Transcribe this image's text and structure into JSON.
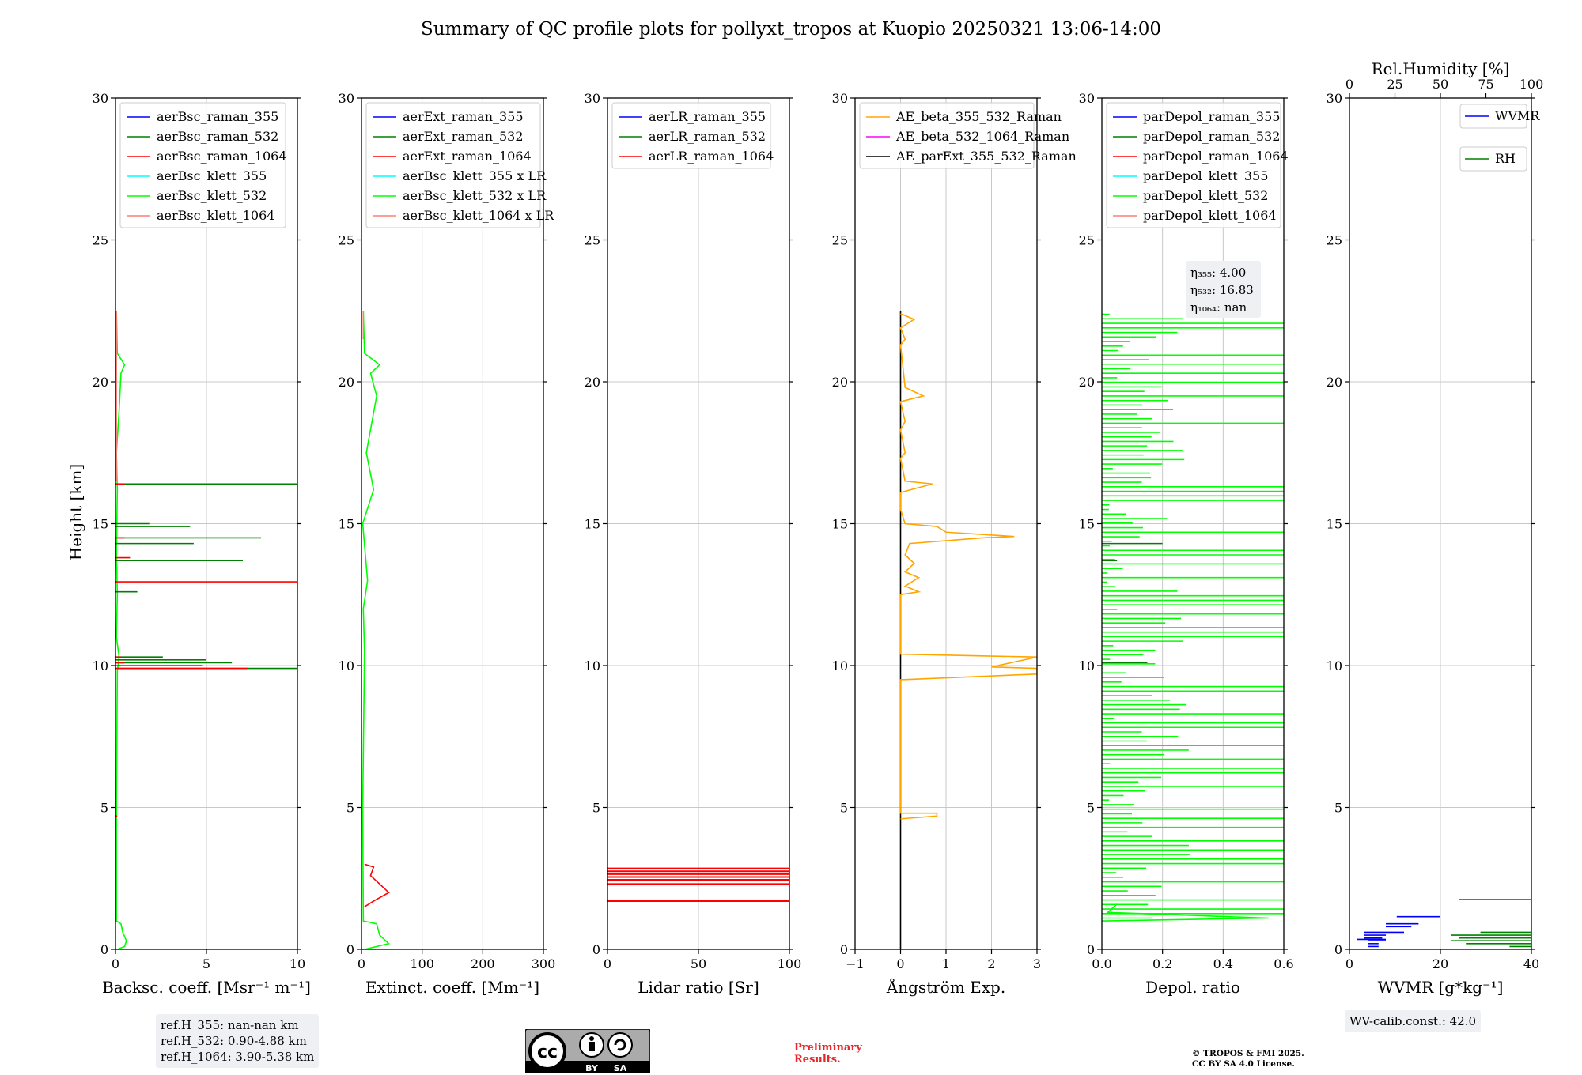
{
  "title": "Summary of QC profile plots for pollyxt_tropos at Kuopio 20250321 13:06-14:00",
  "ylabel": "Height [km]",
  "chart_data": [
    {
      "type": "line",
      "name": "backscatter",
      "xlabel": "Backsc. coeff. [Msr⁻¹ m⁻¹]",
      "xlim": [
        0,
        10
      ],
      "ylim": [
        0,
        30
      ],
      "xticks": [
        "0",
        "5",
        "10"
      ],
      "yticks": [
        "0",
        "5",
        "10",
        "15",
        "20",
        "25",
        "30"
      ],
      "legend": [
        "aerBsc_raman_355",
        "aerBsc_raman_532",
        "aerBsc_raman_1064",
        "aerBsc_klett_355",
        "aerBsc_klett_532",
        "aerBsc_klett_1064"
      ],
      "legend_colors": [
        "#0000ff",
        "#008000",
        "#ff0000",
        "#00ffff",
        "#00ff00",
        "#fa8072"
      ],
      "series": [
        {
          "color": "#00ff00",
          "points": [
            [
              0.1,
              0
            ],
            [
              0.5,
              0.1
            ],
            [
              0.6,
              0.3
            ],
            [
              0.4,
              0.6
            ],
            [
              0.3,
              0.9
            ],
            [
              0.05,
              1.0
            ],
            [
              0.05,
              5
            ],
            [
              0.1,
              9.8
            ],
            [
              0.2,
              10.3
            ],
            [
              0.05,
              11
            ],
            [
              0.1,
              12.5
            ],
            [
              0.05,
              14
            ],
            [
              0.1,
              16.2
            ],
            [
              0.05,
              17.5
            ],
            [
              0.2,
              19
            ],
            [
              0.3,
              20.3
            ],
            [
              0.5,
              20.6
            ],
            [
              0.1,
              21
            ],
            [
              0.05,
              22.5
            ]
          ]
        },
        {
          "color": "#008000",
          "segments": [
            [
              9.9,
              10
            ],
            [
              10.0,
              4.8
            ],
            [
              10.1,
              6.4
            ],
            [
              10.2,
              5.0
            ],
            [
              10.3,
              2.6
            ],
            [
              14.3,
              4.3
            ],
            [
              14.5,
              8.0
            ],
            [
              14.9,
              4.1
            ],
            [
              15.0,
              1.9
            ],
            [
              16.4,
              10.0
            ],
            [
              13.7,
              7.0
            ],
            [
              12.6,
              1.2
            ]
          ]
        },
        {
          "color": "#ff0000",
          "segments": [
            [
              9.9,
              7.3
            ],
            [
              10.1,
              0.5
            ],
            [
              10.3,
              0.3
            ],
            [
              12.95,
              10.0
            ],
            [
              14.5,
              0.5
            ],
            [
              13.8,
              0.8
            ],
            [
              16.4,
              0.5
            ],
            [
              4.7,
              0.1
            ]
          ]
        },
        {
          "color": "#fa8072",
          "points": [
            [
              0.05,
              22.5
            ],
            [
              0.05,
              16.5
            ]
          ]
        }
      ]
    },
    {
      "type": "line",
      "name": "extinction",
      "xlabel": "Extinct. coeff. [Mm⁻¹]",
      "xlim": [
        0,
        300
      ],
      "ylim": [
        0,
        30
      ],
      "xticks": [
        "0",
        "100",
        "200",
        "300"
      ],
      "yticks": [
        "0",
        "5",
        "10",
        "15",
        "20",
        "25",
        "30"
      ],
      "legend": [
        "aerExt_raman_355",
        "aerExt_raman_532",
        "aerExt_raman_1064",
        "aerBsc_klett_355 x LR",
        "aerBsc_klett_532 x LR",
        "aerBsc_klett_1064 x LR"
      ],
      "legend_colors": [
        "#0000ff",
        "#008000",
        "#ff0000",
        "#00ffff",
        "#00ff00",
        "#fa8072"
      ],
      "series": [
        {
          "color": "#00ff00",
          "points": [
            [
              5,
              0
            ],
            [
              45,
              0.2
            ],
            [
              30,
              0.5
            ],
            [
              25,
              0.9
            ],
            [
              3,
              1.0
            ],
            [
              2,
              5
            ],
            [
              5,
              10.5
            ],
            [
              3,
              12
            ],
            [
              10,
              13
            ],
            [
              2,
              15
            ],
            [
              20,
              16.2
            ],
            [
              8,
              17.5
            ],
            [
              25,
              19.5
            ],
            [
              15,
              20.3
            ],
            [
              30,
              20.6
            ],
            [
              5,
              21
            ],
            [
              3,
              22.5
            ]
          ]
        },
        {
          "color": "#ff0000",
          "points": [
            [
              5,
              1.5
            ],
            [
              20,
              1.7
            ],
            [
              45,
              2.0
            ],
            [
              30,
              2.3
            ],
            [
              15,
              2.6
            ],
            [
              20,
              2.9
            ],
            [
              5,
              3.0
            ]
          ]
        },
        {
          "color": "#fa8072",
          "points": [
            [
              3,
              22.5
            ],
            [
              3,
              21.5
            ]
          ]
        }
      ]
    },
    {
      "type": "line",
      "name": "lidar_ratio",
      "xlabel": "Lidar ratio [Sr]",
      "xlim": [
        0,
        120
      ],
      "ylim": [
        0,
        30
      ],
      "xticks": [
        "0",
        "50",
        "100"
      ],
      "yticks": [
        "0",
        "5",
        "10",
        "15",
        "20",
        "25",
        "30"
      ],
      "legend": [
        "aerLR_raman_355",
        "aerLR_raman_532",
        "aerLR_raman_1064"
      ],
      "legend_colors": [
        "#0000ff",
        "#008000",
        "#ff0000"
      ],
      "series": [
        {
          "color": "#ff0000",
          "hlines": [
            1.7,
            2.3,
            2.45,
            2.55,
            2.65,
            2.75,
            2.85
          ]
        }
      ]
    },
    {
      "type": "line",
      "name": "angstrom",
      "xlabel": "Ångström Exp.",
      "xlim": [
        -1,
        3
      ],
      "ylim": [
        0,
        30
      ],
      "xticks": [
        "−1",
        "0",
        "1",
        "2",
        "3"
      ],
      "yticks": [
        "0",
        "5",
        "10",
        "15",
        "20",
        "25",
        "30"
      ],
      "legend": [
        "AE_beta_355_532_Raman",
        "AE_beta_532_1064_Raman",
        "AE_parExt_355_532_Raman"
      ],
      "legend_colors": [
        "#ffa500",
        "#ff00ff",
        "#000000"
      ],
      "series": [
        {
          "color": "#000000",
          "points": [
            [
              0,
              0
            ],
            [
              0,
              22.5
            ]
          ]
        },
        {
          "color": "#ffa500",
          "points": [
            [
              0,
              4.6
            ],
            [
              0.8,
              4.7
            ],
            [
              0.8,
              4.8
            ],
            [
              0,
              4.8
            ],
            [
              0,
              9.5
            ],
            [
              3.0,
              9.7
            ],
            [
              3.0,
              9.9
            ],
            [
              2.0,
              9.95
            ],
            [
              3.0,
              10.3
            ],
            [
              0,
              10.4
            ],
            [
              0,
              12.5
            ],
            [
              0.4,
              12.6
            ],
            [
              0.1,
              12.8
            ],
            [
              0.4,
              13.1
            ],
            [
              0.1,
              13.3
            ],
            [
              0.3,
              13.6
            ],
            [
              0.1,
              13.9
            ],
            [
              0.2,
              14.3
            ],
            [
              1.8,
              14.5
            ],
            [
              2.5,
              14.55
            ],
            [
              1.0,
              14.7
            ],
            [
              0.8,
              14.9
            ],
            [
              0.1,
              15.0
            ],
            [
              0,
              15.5
            ],
            [
              0,
              16.1
            ],
            [
              0.7,
              16.4
            ],
            [
              0.1,
              16.5
            ],
            [
              0,
              17.3
            ],
            [
              0.1,
              17.5
            ],
            [
              0,
              18.3
            ],
            [
              0.1,
              18.6
            ],
            [
              0,
              19.3
            ],
            [
              0.5,
              19.5
            ],
            [
              0.1,
              19.8
            ],
            [
              0,
              21.3
            ],
            [
              0.1,
              21.5
            ],
            [
              0,
              21.9
            ],
            [
              0.3,
              22.2
            ],
            [
              0,
              22.4
            ]
          ]
        }
      ]
    },
    {
      "type": "line",
      "name": "depolarization",
      "xlabel": "Depol. ratio",
      "xlim": [
        0,
        0.6
      ],
      "ylim": [
        0,
        30
      ],
      "xticks": [
        "0.0",
        "0.2",
        "0.4",
        "0.6"
      ],
      "yticks": [
        "0",
        "5",
        "10",
        "15",
        "20",
        "25",
        "30"
      ],
      "legend": [
        "parDepol_raman_355",
        "parDepol_raman_532",
        "parDepol_raman_1064",
        "parDepol_klett_355",
        "parDepol_klett_532",
        "parDepol_klett_1064"
      ],
      "legend_colors": [
        "#0000ff",
        "#008000",
        "#ff0000",
        "#00ffff",
        "#00ff00",
        "#fa8072"
      ],
      "annotation": [
        "η₃₅₅: 4.00",
        "η₅₃₂: 16.83",
        "η₁₀₆₄: nan"
      ],
      "series": [
        {
          "color": "#00ff00",
          "note": "dense spiky profile 1-22.5 km, values 0.0-0.6",
          "points": [
            [
              0.0,
              1.0
            ],
            [
              0.55,
              1.1
            ],
            [
              0.02,
              1.3
            ],
            [
              0.05,
              1.6
            ]
          ]
        },
        {
          "color": "#008000",
          "segments": [
            [
              10.1,
              0.15
            ],
            [
              14.3,
              0.2
            ],
            [
              13.7,
              0.05
            ]
          ]
        }
      ]
    },
    {
      "type": "line",
      "name": "water_vapor",
      "xlabel": "WVMR [g*kg⁻¹]",
      "x2label": "Rel.Humidity [%]",
      "xlim": [
        0,
        50
      ],
      "x2lim": [
        0,
        100
      ],
      "ylim": [
        0,
        30
      ],
      "xticks": [
        "0",
        "20",
        "40"
      ],
      "x2ticks": [
        "0",
        "25",
        "50",
        "75",
        "100"
      ],
      "yticks": [
        "0",
        "5",
        "10",
        "15",
        "20",
        "25",
        "30"
      ],
      "legend": [
        "WVMR",
        "RH"
      ],
      "legend_colors": [
        "#0000ff",
        "#008000"
      ],
      "series": [
        {
          "color": "#0000ff",
          "segments": [
            [
              1.75,
              30,
              50
            ],
            [
              1.15,
              13,
              25
            ],
            [
              0.9,
              10,
              19
            ],
            [
              0.8,
              10,
              17
            ],
            [
              0.6,
              4,
              15
            ],
            [
              0.5,
              4,
              10
            ],
            [
              0.4,
              4,
              9
            ],
            [
              0.35,
              2,
              10
            ],
            [
              0.3,
              5,
              10
            ],
            [
              0.2,
              5,
              8
            ],
            [
              0.1,
              5,
              8
            ],
            [
              0.0,
              40,
              50
            ]
          ]
        },
        {
          "color": "#008000",
          "segments": [
            [
              0.6,
              36,
              50
            ],
            [
              0.5,
              28,
              50
            ],
            [
              0.4,
              30,
              50
            ],
            [
              0.3,
              28,
              50
            ],
            [
              0.2,
              32,
              50
            ],
            [
              0.1,
              44,
              50
            ]
          ]
        }
      ]
    }
  ],
  "footer": {
    "ref_box": [
      "ref.H_355: nan-nan km",
      "ref.H_532: 0.90-4.88 km",
      "ref.H_1064: 3.90-5.38 km"
    ],
    "wv_calib": "WV-calib.const.: 42.0",
    "prelim_line1": "Preliminary",
    "prelim_line2": "Results.",
    "copyright_line1": "© TROPOS & FMI 2025.",
    "copyright_line2": "CC BY SA 4.0 License.",
    "cc_by": "BY",
    "cc_sa": "SA"
  }
}
